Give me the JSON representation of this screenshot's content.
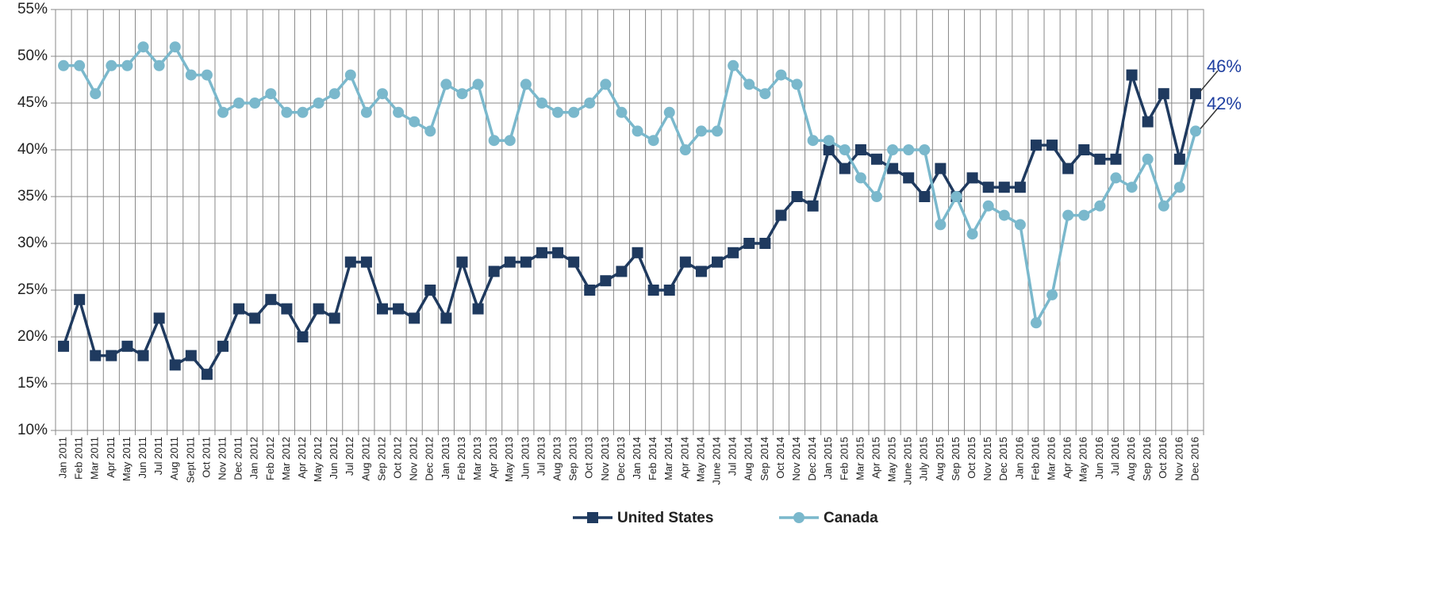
{
  "chart_data": {
    "type": "line",
    "categories": [
      "Jan 2011",
      "Feb 2011",
      "Mar 2011",
      "Apr 2011",
      "May 2011",
      "Jun 2011",
      "Jul 2011",
      "Aug 2011",
      "Sept 2011",
      "Oct 2011",
      "Nov 2011",
      "Dec 2011",
      "Jan 2012",
      "Feb 2012",
      "Mar 2012",
      "Apr 2012",
      "May 2012",
      "Jun 2012",
      "Jul 2012",
      "Aug 2012",
      "Sep 2012",
      "Oct 2012",
      "Nov 2012",
      "Dec 2012",
      "Jan 2013",
      "Feb 2013",
      "Mar 2013",
      "Apr 2013",
      "May 2013",
      "Jun 2013",
      "Jul 2013",
      "Aug 2013",
      "Sep 2013",
      "Oct 2013",
      "Nov 2013",
      "Dec 2013",
      "Jan 2014",
      "Feb 2014",
      "Mar 2014",
      "Apr 2014",
      "May 2014",
      "June 2014",
      "Jul 2014",
      "Aug 2014",
      "Sep 2014",
      "Oct 2014",
      "Nov 2014",
      "Dec 2014",
      "Jan 2015",
      "Feb 2015",
      "Mar 2015",
      "Apr 2015",
      "May 2015",
      "June 2015",
      "July 2015",
      "Aug 2015",
      "Sep 2015",
      "Oct 2015",
      "Nov 2015",
      "Dec 2015",
      "Jan 2016",
      "Feb 2016",
      "Mar 2016",
      "Apr 2016",
      "May 2016",
      "Jun 2016",
      "Jul 2016",
      "Aug 2016",
      "Sep 2016",
      "Oct 2016",
      "Nov 2016",
      "Dec 2016"
    ],
    "series": [
      {
        "name": "United States",
        "color": "#1f3a5f",
        "marker": "square",
        "values": [
          19,
          24,
          18,
          18,
          19,
          18,
          22,
          17,
          18,
          16,
          19,
          23,
          22,
          24,
          23,
          20,
          23,
          22,
          28,
          28,
          23,
          23,
          22,
          25,
          22,
          28,
          23,
          27,
          28,
          28,
          29,
          29,
          28,
          25,
          26,
          27,
          29,
          25,
          25,
          28,
          27,
          28,
          29,
          30,
          30,
          33,
          35,
          34,
          40,
          38,
          40,
          39,
          38,
          37,
          35,
          38,
          35,
          37,
          36,
          36,
          36,
          40.5,
          40.5,
          38,
          40,
          39,
          39,
          48,
          43,
          46,
          39,
          46
        ],
        "value_labels": [
          null,
          null,
          null,
          null,
          null,
          null,
          null,
          null,
          null,
          null,
          null,
          null,
          null,
          null,
          null,
          null,
          null,
          null,
          null,
          null,
          null,
          null,
          null,
          null,
          null,
          null,
          null,
          null,
          null,
          null,
          null,
          null,
          null,
          null,
          null,
          null,
          null,
          null,
          null,
          null,
          null,
          null,
          null,
          null,
          null,
          null,
          null,
          null,
          null,
          null,
          null,
          null,
          null,
          null,
          null,
          null,
          null,
          null,
          null,
          null,
          null,
          null,
          null,
          null,
          null,
          null,
          null,
          null,
          null,
          null,
          null,
          "46%"
        ]
      },
      {
        "name": "Canada",
        "color": "#7ab8cc",
        "marker": "circle",
        "values": [
          49,
          49,
          46,
          49,
          49,
          51,
          49,
          51,
          48,
          48,
          44,
          45,
          45,
          46,
          44,
          44,
          45,
          46,
          48,
          44,
          46,
          44,
          43,
          42,
          47,
          46,
          47,
          41,
          41,
          47,
          45,
          44,
          44,
          45,
          47,
          44,
          42,
          41,
          44,
          40,
          42,
          42,
          49,
          47,
          46,
          48,
          47,
          41,
          41,
          40,
          37,
          35,
          40,
          40,
          40,
          32,
          35,
          31,
          34,
          33,
          32,
          21.5,
          24.5,
          33,
          33,
          34,
          37,
          36,
          39,
          34,
          36,
          42
        ],
        "value_labels": [
          null,
          null,
          null,
          null,
          null,
          null,
          null,
          null,
          null,
          null,
          null,
          null,
          null,
          null,
          null,
          null,
          null,
          null,
          null,
          null,
          null,
          null,
          null,
          null,
          null,
          null,
          null,
          null,
          null,
          null,
          null,
          null,
          null,
          null,
          null,
          null,
          null,
          null,
          null,
          null,
          null,
          null,
          null,
          null,
          null,
          null,
          null,
          null,
          null,
          null,
          null,
          null,
          null,
          null,
          null,
          null,
          null,
          null,
          null,
          null,
          null,
          null,
          null,
          null,
          null,
          null,
          null,
          null,
          null,
          null,
          null,
          "42%"
        ]
      }
    ],
    "ylim": [
      10,
      55
    ],
    "yticks": [
      {
        "value": 10,
        "label": "10%"
      },
      {
        "value": 15,
        "label": "15%"
      },
      {
        "value": 20,
        "label": "20%"
      },
      {
        "value": 25,
        "label": "25%"
      },
      {
        "value": 30,
        "label": "30%"
      },
      {
        "value": 35,
        "label": "35%"
      },
      {
        "value": 40,
        "label": "40%"
      },
      {
        "value": 45,
        "label": "45%"
      },
      {
        "value": 50,
        "label": "50%"
      },
      {
        "value": 55,
        "label": "55%"
      }
    ],
    "grid": true,
    "legend": "bottom"
  }
}
